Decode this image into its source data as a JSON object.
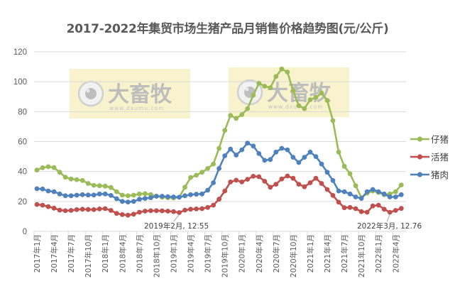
{
  "chart": {
    "title": "2017-2022年集贸市场生猪产品月销售价格趋势图(元/公斤)",
    "watermark": {
      "brand": "大畜牧",
      "url": "www.dxumu.com"
    },
    "annotations": [
      {
        "label": "2019年2月, 12.55",
        "series": "活猪",
        "index": 25
      },
      {
        "label": "2022年3月, 12.76",
        "series": "活猪",
        "index": 62
      }
    ],
    "legend": [
      {
        "name": "仔猪",
        "color": "#9bbb59"
      },
      {
        "name": "活猪",
        "color": "#c0504d"
      },
      {
        "name": "猪肉",
        "color": "#4f81bd"
      }
    ]
  },
  "chart_data": {
    "type": "line",
    "title": "2017-2022年集贸市场生猪产品月销售价格趋势图(元/公斤)",
    "xlabel": "",
    "ylabel": "",
    "ylim": [
      0,
      120
    ],
    "yticks": [
      0,
      20,
      40,
      60,
      80,
      100,
      120
    ],
    "grid": true,
    "legend_position": "right",
    "x_tick_labels": [
      "2017年1月",
      "2017年4月",
      "2017年7月",
      "2017年10月",
      "2018年1月",
      "2018年4月",
      "2018年7月",
      "2018年10月",
      "2019年1月",
      "2019年4月",
      "2019年7月",
      "2019年10月",
      "2020年1月",
      "2020年4月",
      "2020年7月",
      "2020年10月",
      "2021年1月",
      "2021年4月",
      "2021年7月",
      "2021年10月",
      "2022年1月",
      "2022年4月"
    ],
    "x": [
      "2017-01",
      "2017-02",
      "2017-03",
      "2017-04",
      "2017-05",
      "2017-06",
      "2017-07",
      "2017-08",
      "2017-09",
      "2017-10",
      "2017-11",
      "2017-12",
      "2018-01",
      "2018-02",
      "2018-03",
      "2018-04",
      "2018-05",
      "2018-06",
      "2018-07",
      "2018-08",
      "2018-09",
      "2018-10",
      "2018-11",
      "2018-12",
      "2019-01",
      "2019-02",
      "2019-03",
      "2019-04",
      "2019-05",
      "2019-06",
      "2019-07",
      "2019-08",
      "2019-09",
      "2019-10",
      "2019-11",
      "2019-12",
      "2020-01",
      "2020-02",
      "2020-03",
      "2020-04",
      "2020-05",
      "2020-06",
      "2020-07",
      "2020-08",
      "2020-09",
      "2020-10",
      "2020-11",
      "2020-12",
      "2021-01",
      "2021-02",
      "2021-03",
      "2021-04",
      "2021-05",
      "2021-06",
      "2021-07",
      "2021-08",
      "2021-09",
      "2021-10",
      "2021-11",
      "2021-12",
      "2022-01",
      "2022-02",
      "2022-03",
      "2022-04",
      "2022-05"
    ],
    "series": [
      {
        "name": "仔猪",
        "color": "#9bbb59",
        "values": [
          41.0,
          42.5,
          43.2,
          42.6,
          39.5,
          36.2,
          35.0,
          34.6,
          34.0,
          32.0,
          30.8,
          30.5,
          30.2,
          29.3,
          26.5,
          24.2,
          23.8,
          24.2,
          25.0,
          25.2,
          24.5,
          23.5,
          22.8,
          22.5,
          22.3,
          22.8,
          29.5,
          36.0,
          37.5,
          39.5,
          42.0,
          45.0,
          55.5,
          67.5,
          77.5,
          75.5,
          78.0,
          82.0,
          91.0,
          99.0,
          97.0,
          96.0,
          103.5,
          108.5,
          106.5,
          94.0,
          84.0,
          82.0,
          88.0,
          89.5,
          92.5,
          87.5,
          74.0,
          53.0,
          43.5,
          38.5,
          30.5,
          22.5,
          25.5,
          27.0,
          26.0,
          24.5,
          25.0,
          26.5,
          31.0
        ]
      },
      {
        "name": "活猪",
        "color": "#c0504d",
        "values": [
          18.0,
          17.5,
          16.5,
          15.5,
          14.2,
          13.8,
          14.0,
          14.5,
          14.8,
          14.6,
          14.5,
          15.0,
          15.2,
          14.0,
          12.0,
          11.2,
          10.8,
          11.5,
          12.8,
          13.5,
          13.8,
          13.8,
          13.7,
          13.5,
          13.2,
          12.55,
          14.2,
          14.8,
          15.0,
          15.2,
          16.0,
          17.5,
          21.5,
          27.0,
          33.0,
          34.2,
          33.0,
          34.8,
          36.8,
          36.5,
          33.5,
          29.5,
          31.5,
          35.0,
          37.0,
          35.5,
          31.5,
          29.8,
          32.5,
          35.5,
          32.0,
          28.0,
          24.0,
          19.5,
          15.8,
          16.0,
          15.2,
          13.2,
          12.8,
          17.0,
          17.5,
          14.8,
          12.76,
          14.0,
          15.3
        ]
      },
      {
        "name": "猪肉",
        "color": "#4f81bd",
        "values": [
          28.5,
          28.3,
          27.0,
          26.5,
          25.0,
          23.8,
          23.8,
          24.2,
          24.5,
          24.3,
          24.3,
          25.0,
          25.0,
          24.0,
          21.8,
          20.0,
          19.6,
          20.0,
          21.5,
          22.0,
          22.5,
          23.5,
          23.5,
          23.2,
          23.0,
          22.8,
          23.8,
          24.5,
          24.8,
          25.0,
          27.5,
          32.5,
          42.0,
          50.5,
          55.0,
          51.0,
          54.5,
          59.0,
          57.0,
          52.0,
          47.5,
          48.0,
          53.0,
          55.5,
          54.5,
          49.5,
          46.0,
          49.5,
          53.0,
          50.0,
          45.0,
          39.5,
          34.0,
          27.0,
          26.5,
          25.0,
          23.0,
          22.0,
          26.5,
          28.0,
          26.5,
          25.0,
          23.0,
          23.0,
          24.5
        ]
      }
    ]
  }
}
